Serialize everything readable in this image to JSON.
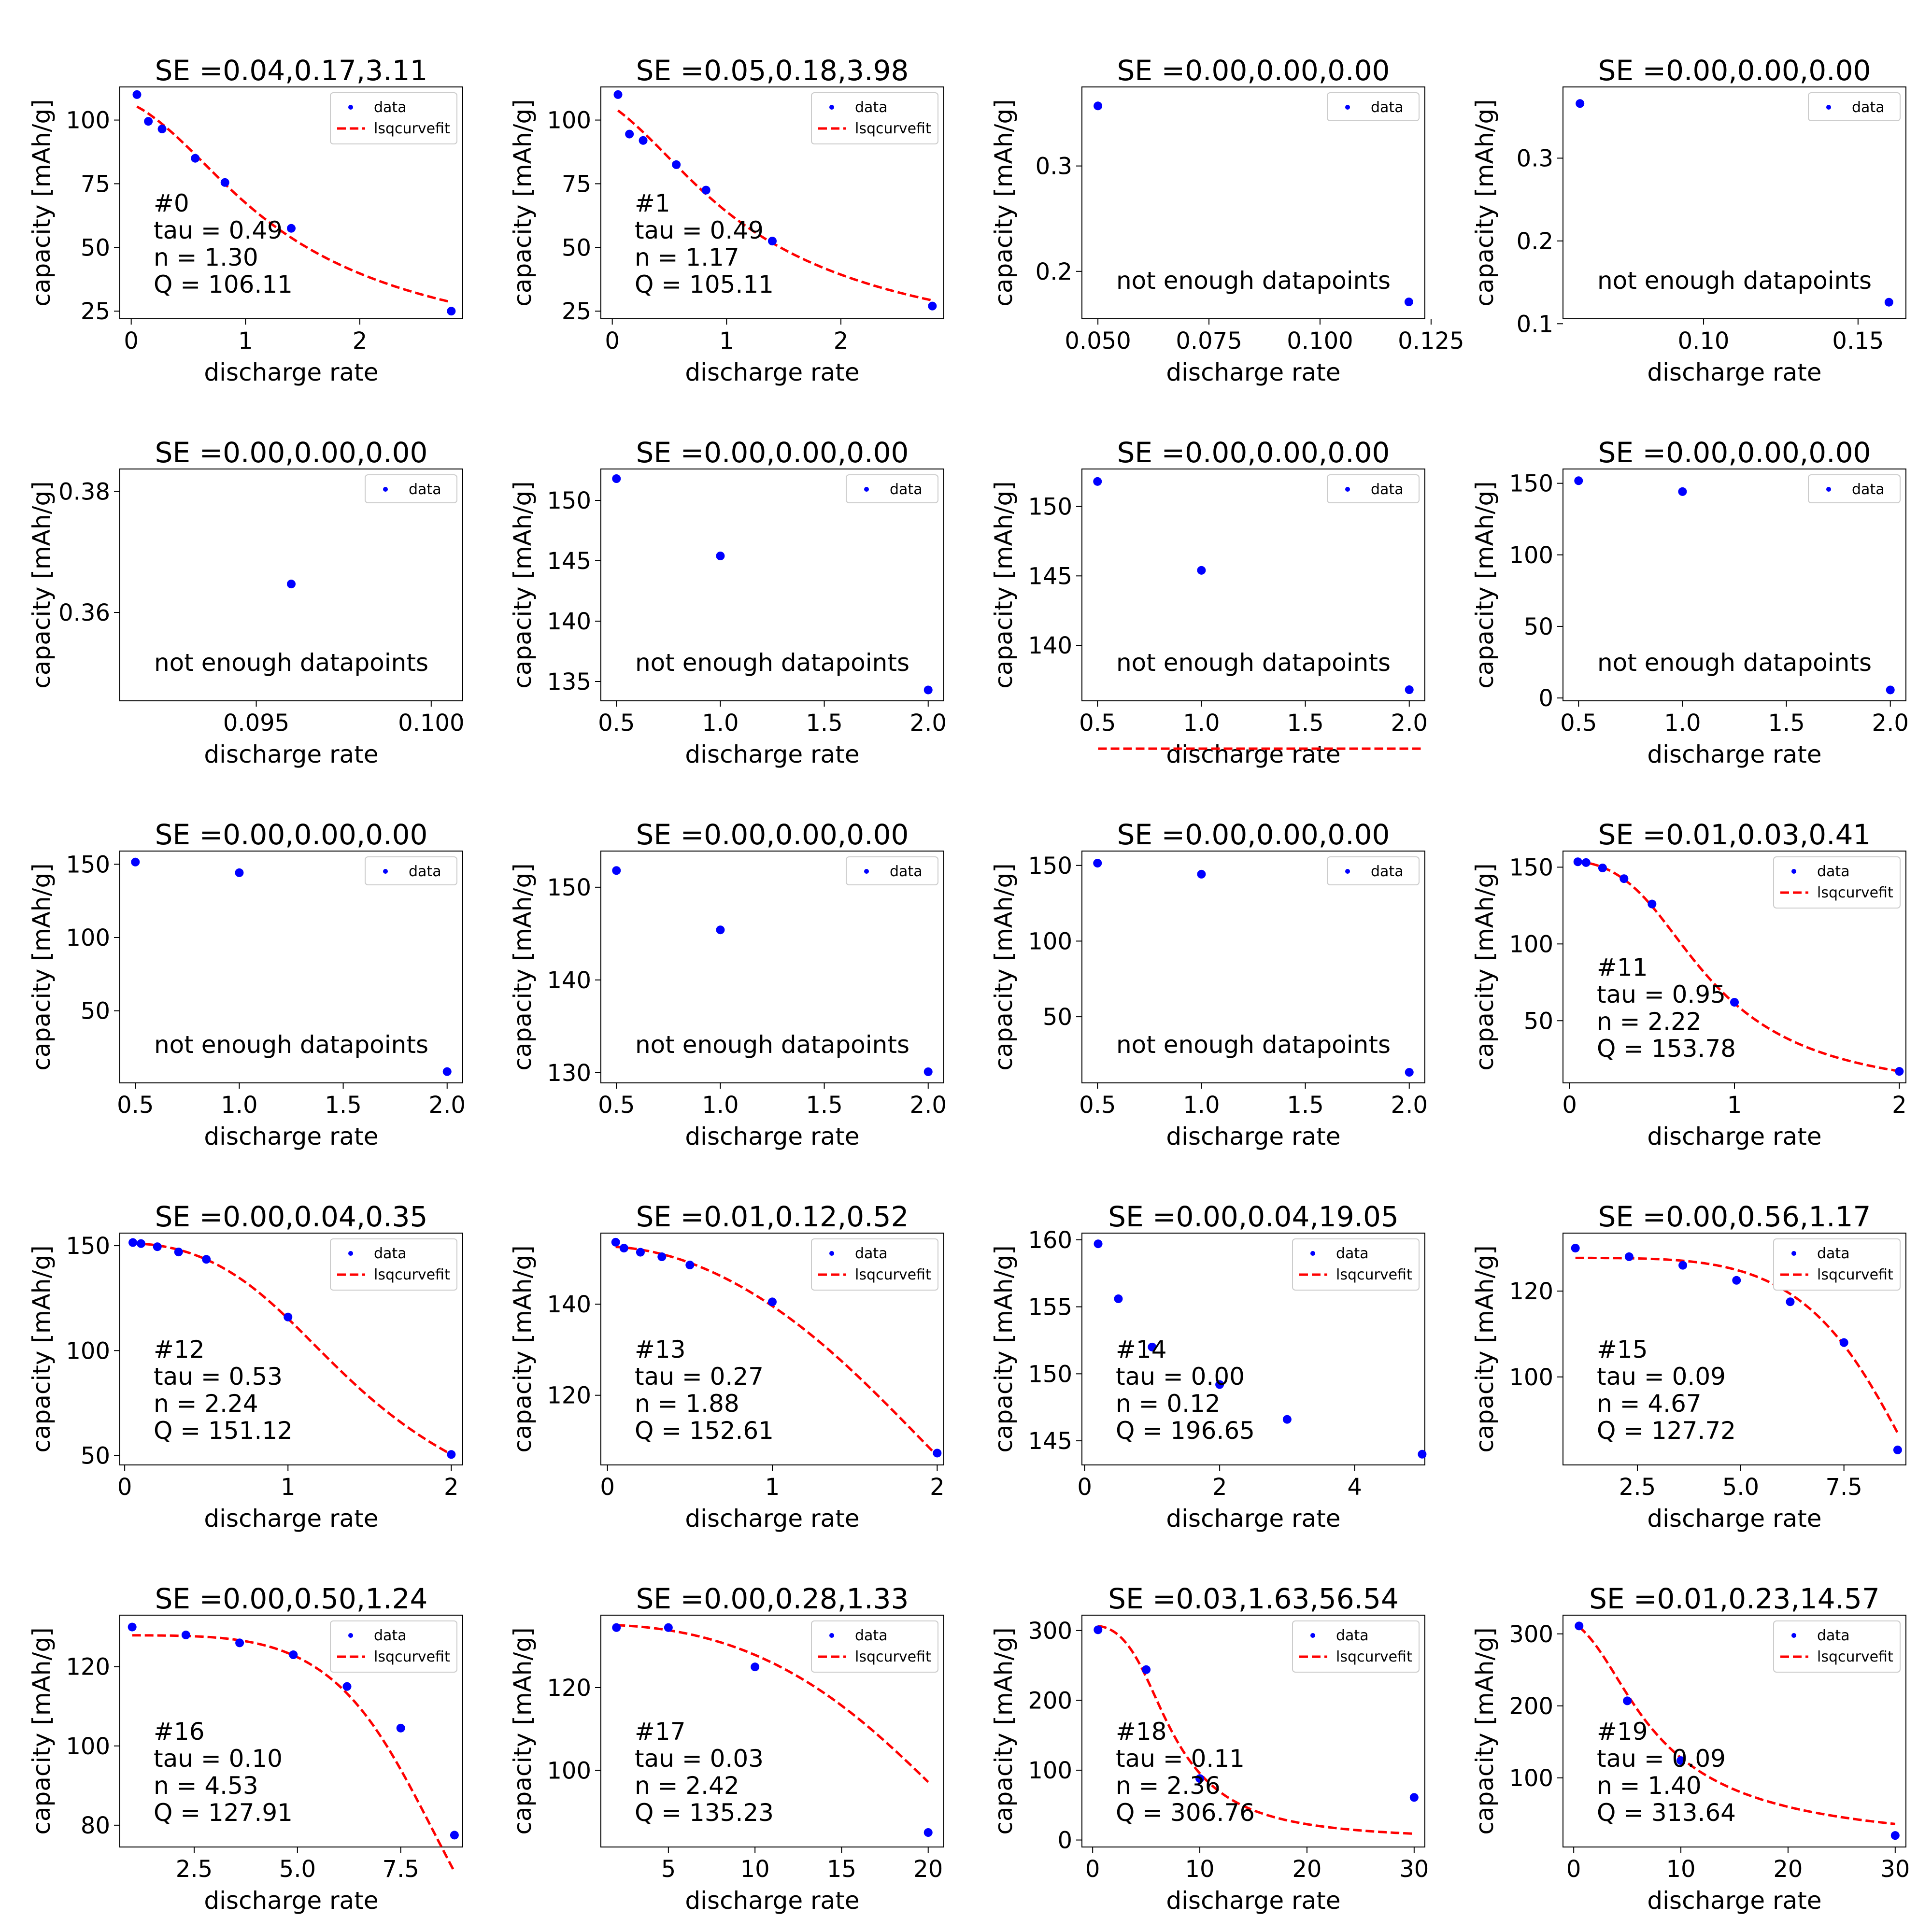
{
  "common": {
    "xlabel": "discharge rate",
    "ylabel": "capacity [mAh/g]",
    "legend_data": "data",
    "legend_fit": "lsqcurvefit",
    "not_enough": "not enough datapoints",
    "data_color": "#0000ff",
    "fit_color": "#ff0000",
    "legend_position": "upper right",
    "grid": false
  },
  "chart_data": [
    {
      "type": "scatter",
      "title": "SE =0.04,0.17,3.11",
      "xlim": [
        -0.1,
        2.9
      ],
      "ylim": [
        22,
        113
      ],
      "xticks": [
        0,
        1,
        2
      ],
      "yticks": [
        25,
        50,
        75,
        100
      ],
      "x": [
        0.05,
        0.15,
        0.27,
        0.56,
        0.82,
        1.4,
        2.8
      ],
      "y": [
        110,
        99.5,
        96.5,
        85,
        75.5,
        57.5,
        25
      ],
      "fit": {
        "tau": 0.49,
        "n": 1.3,
        "Q": 106.11
      },
      "annotation": [
        "#0",
        "tau = 0.49",
        "n = 1.30",
        "Q = 106.11"
      ]
    },
    {
      "type": "scatter",
      "title": "SE =0.05,0.18,3.98",
      "xlim": [
        -0.1,
        2.9
      ],
      "ylim": [
        22,
        113
      ],
      "xticks": [
        0,
        1,
        2
      ],
      "yticks": [
        25,
        50,
        75,
        100
      ],
      "x": [
        0.05,
        0.15,
        0.27,
        0.56,
        0.82,
        1.4,
        2.8
      ],
      "y": [
        110,
        94.5,
        92,
        82.5,
        72.5,
        52.5,
        27
      ],
      "fit": {
        "tau": 0.49,
        "n": 1.17,
        "Q": 105.11
      },
      "annotation": [
        "#1",
        "tau = 0.49",
        "n = 1.17",
        "Q = 105.11"
      ]
    },
    {
      "type": "scatter",
      "title": "SE =0.00,0.00,0.00",
      "xlim": [
        0.0464,
        0.1236
      ],
      "ylim": [
        0.155,
        0.375
      ],
      "xticks": [
        0.05,
        0.075,
        0.1,
        0.125
      ],
      "xtick_labels": [
        "0.050",
        "0.075",
        "0.100",
        "0.125"
      ],
      "yticks": [
        0.2,
        0.3
      ],
      "yticks_labels": [
        "0.2",
        "0.3"
      ],
      "x": [
        0.05,
        0.12
      ],
      "y": [
        0.357,
        0.171
      ],
      "note": true
    },
    {
      "type": "scatter",
      "title": "SE =0.00,0.00,0.00",
      "xlim": [
        0.0545,
        0.1655
      ],
      "ylim": [
        0.106,
        0.386
      ],
      "xticks": [
        0.1,
        0.15
      ],
      "xtick_labels": [
        "0.10",
        "0.15"
      ],
      "yticks": [
        0.1,
        0.2,
        0.3
      ],
      "yticks_labels": [
        "0.1",
        "0.2",
        "0.3"
      ],
      "x": [
        0.06,
        0.16
      ],
      "y": [
        0.366,
        0.126
      ],
      "note": true
    },
    {
      "type": "scatter",
      "title": "SE =0.00,0.00,0.00",
      "xlim": [
        0.0911,
        0.1009
      ],
      "ylim": [
        0.3454,
        0.3837
      ],
      "xticks": [
        0.095,
        0.1
      ],
      "xtick_labels": [
        "0.095",
        "0.100"
      ],
      "yticks": [
        0.36,
        0.38
      ],
      "yticks_labels": [
        "0.36",
        "0.38"
      ],
      "x": [
        0.096
      ],
      "y": [
        0.3647
      ],
      "note": true
    },
    {
      "type": "scatter",
      "title": "SE =0.00,0.00,0.00",
      "xlim": [
        0.425,
        2.075
      ],
      "ylim": [
        133.4,
        152.6
      ],
      "xticks": [
        0.5,
        1,
        1.5,
        2
      ],
      "xtick_labels": [
        "0.5",
        "1.0",
        "1.5",
        "2.0"
      ],
      "yticks": [
        135,
        140,
        145,
        150
      ],
      "x": [
        0.5,
        1,
        2
      ],
      "y": [
        151.8,
        145.4,
        134.3
      ],
      "note": true
    },
    {
      "type": "scatter",
      "title": "SE =0.00,0.00,0.00",
      "xlim": [
        0.425,
        2.075
      ],
      "ylim": [
        136,
        152.7
      ],
      "xticks": [
        0.5,
        1,
        1.5,
        2
      ],
      "xtick_labels": [
        "0.5",
        "1.0",
        "1.5",
        "2.0"
      ],
      "yticks": [
        140,
        145,
        150
      ],
      "x": [
        0.5,
        1,
        2
      ],
      "y": [
        151.8,
        145.4,
        136.8
      ],
      "note": true
    },
    {
      "type": "scatter",
      "title": "SE =0.00,0.00,0.00",
      "xlim": [
        0.425,
        2.075
      ],
      "ylim": [
        -2,
        160
      ],
      "xticks": [
        0.5,
        1,
        1.5,
        2
      ],
      "xtick_labels": [
        "0.5",
        "1.0",
        "1.5",
        "2.0"
      ],
      "yticks": [
        0,
        50,
        100,
        150
      ],
      "x": [
        0.5,
        1,
        2
      ],
      "y": [
        151.8,
        144.2,
        5.6
      ],
      "note": true
    },
    {
      "type": "scatter",
      "title": "SE =0.00,0.00,0.00",
      "xlim": [
        0.425,
        2.075
      ],
      "ylim": [
        0.8,
        159
      ],
      "xticks": [
        0.5,
        1,
        1.5,
        2
      ],
      "xtick_labels": [
        "0.5",
        "1.0",
        "1.5",
        "2.0"
      ],
      "yticks": [
        50,
        100,
        150
      ],
      "x": [
        0.5,
        1,
        2
      ],
      "y": [
        151.5,
        144.2,
        8.5
      ],
      "note": true
    },
    {
      "type": "scatter",
      "title": "SE =0.00,0.00,0.00",
      "xlim": [
        0.425,
        2.075
      ],
      "ylim": [
        128.9,
        153.9
      ],
      "xticks": [
        0.5,
        1,
        1.5,
        2
      ],
      "xtick_labels": [
        "0.5",
        "1.0",
        "1.5",
        "2.0"
      ],
      "yticks": [
        130,
        140,
        150
      ],
      "x": [
        0.5,
        1,
        2
      ],
      "y": [
        151.8,
        145.4,
        130.1
      ],
      "note": true
    },
    {
      "type": "scatter",
      "title": "SE =0.00,0.00,0.00",
      "xlim": [
        0.425,
        2.075
      ],
      "ylim": [
        6.3,
        159.5
      ],
      "xticks": [
        0.5,
        1,
        1.5,
        2
      ],
      "xtick_labels": [
        "0.5",
        "1.0",
        "1.5",
        "2.0"
      ],
      "yticks": [
        50,
        100,
        150
      ],
      "x": [
        0.5,
        1,
        2
      ],
      "y": [
        151.5,
        144.2,
        13.3
      ],
      "note": true
    },
    {
      "type": "scatter",
      "title": "SE =0.01,0.03,0.41",
      "xlim": [
        -0.04,
        2.04
      ],
      "ylim": [
        9.5,
        160.5
      ],
      "xticks": [
        0,
        1,
        2
      ],
      "yticks": [
        50,
        100,
        150
      ],
      "x": [
        0.05,
        0.1,
        0.2,
        0.33,
        0.5,
        1,
        2
      ],
      "y": [
        153.5,
        153,
        149.5,
        142.5,
        126,
        62,
        17
      ],
      "fit": {
        "tau": 0.95,
        "n": 2.22,
        "Q": 153.78
      },
      "annotation": [
        "#11",
        "tau = 0.95",
        "n = 2.22",
        "Q = 153.78"
      ]
    },
    {
      "type": "scatter",
      "title": "SE =0.00,0.04,0.35",
      "xlim": [
        -0.03,
        2.07
      ],
      "ylim": [
        45.5,
        156
      ],
      "xticks": [
        0,
        1,
        2
      ],
      "yticks": [
        50,
        100,
        150
      ],
      "x": [
        0.05,
        0.1,
        0.2,
        0.33,
        0.5,
        1,
        2
      ],
      "y": [
        151.5,
        151,
        149.5,
        147,
        143.5,
        116,
        50.5
      ],
      "fit": {
        "tau": 0.53,
        "n": 2.24,
        "Q": 151.12
      },
      "annotation": [
        "#12",
        "tau = 0.53",
        "n = 2.24",
        "Q = 151.12"
      ]
    },
    {
      "type": "scatter",
      "title": "SE =0.01,0.12,0.52",
      "xlim": [
        -0.04,
        2.04
      ],
      "ylim": [
        104.7,
        155.6
      ],
      "xticks": [
        0,
        1,
        2
      ],
      "yticks": [
        120,
        140
      ],
      "x": [
        0.05,
        0.1,
        0.2,
        0.33,
        0.5,
        1,
        2
      ],
      "y": [
        153.6,
        152.3,
        151.4,
        150.4,
        148.6,
        140.5,
        107.3
      ],
      "fit": {
        "tau": 0.27,
        "n": 1.88,
        "Q": 152.61
      },
      "annotation": [
        "#13",
        "tau = 0.27",
        "n = 1.88",
        "Q = 152.61"
      ]
    },
    {
      "type": "scatter",
      "title": "SE =0.00,0.04,19.05",
      "xlim": [
        -0.04,
        5.04
      ],
      "ylim": [
        143.2,
        160.5
      ],
      "xticks": [
        0,
        2,
        4
      ],
      "yticks": [
        145,
        150,
        155,
        160
      ],
      "x": [
        0.2,
        0.5,
        1,
        2,
        3,
        5
      ],
      "y": [
        159.7,
        155.6,
        152,
        149.2,
        146.6,
        144
      ],
      "fit": {
        "tau": 0.0,
        "n": 0.12,
        "Q": 196.65
      },
      "annotation": [
        "#14",
        "tau = 0.00",
        "n = 0.12",
        "Q = 196.65"
      ]
    },
    {
      "type": "scatter",
      "title": "SE =0.00,0.56,1.17",
      "xlim": [
        0.7,
        9.0
      ],
      "ylim": [
        79.5,
        133.5
      ],
      "xticks": [
        2.5,
        5,
        7.5
      ],
      "xtick_labels": [
        "2.5",
        "5.0",
        "7.5"
      ],
      "yticks": [
        100,
        120
      ],
      "x": [
        1,
        2.3,
        3.6,
        4.9,
        6.2,
        7.5,
        8.8
      ],
      "y": [
        130,
        128,
        126,
        122.5,
        117.5,
        108,
        83
      ],
      "fit": {
        "tau": 0.09,
        "n": 4.67,
        "Q": 127.72
      },
      "annotation": [
        "#15",
        "tau = 0.09",
        "n = 4.67",
        "Q = 127.72"
      ]
    },
    {
      "type": "scatter",
      "title": "SE =0.00,0.50,1.24",
      "xlim": [
        0.7,
        9.0
      ],
      "ylim": [
        74.5,
        133
      ],
      "xticks": [
        2.5,
        5,
        7.5
      ],
      "xtick_labels": [
        "2.5",
        "5.0",
        "7.5"
      ],
      "yticks": [
        80,
        100,
        120
      ],
      "x": [
        1,
        2.3,
        3.6,
        4.9,
        6.2,
        7.5,
        8.8
      ],
      "y": [
        130,
        128,
        126,
        123,
        115,
        104.5,
        77.5
      ],
      "fit": {
        "tau": 0.1,
        "n": 4.53,
        "Q": 127.91
      },
      "annotation": [
        "#16",
        "tau = 0.10",
        "n = 4.53",
        "Q = 127.91"
      ]
    },
    {
      "type": "scatter",
      "title": "SE =0.00,0.28,1.33",
      "xlim": [
        1.1,
        20.9
      ],
      "ylim": [
        81.5,
        137.5
      ],
      "xticks": [
        5,
        10,
        15,
        20
      ],
      "yticks": [
        100,
        120
      ],
      "x": [
        2,
        5,
        10,
        20
      ],
      "y": [
        134.5,
        134.5,
        125,
        85
      ],
      "fit": {
        "tau": 0.03,
        "n": 2.42,
        "Q": 135.23
      },
      "annotation": [
        "#17",
        "tau = 0.03",
        "n = 2.42",
        "Q = 135.23"
      ]
    },
    {
      "type": "scatter",
      "title": "SE =0.03,1.63,56.54",
      "xlim": [
        -1,
        31
      ],
      "ylim": [
        -10,
        322
      ],
      "xticks": [
        0,
        10,
        20,
        30
      ],
      "yticks": [
        0,
        100,
        200,
        300
      ],
      "x": [
        0.5,
        5,
        10,
        30
      ],
      "y": [
        301,
        244,
        88,
        61
      ],
      "fit": {
        "tau": 0.11,
        "n": 2.36,
        "Q": 306.76
      },
      "annotation": [
        "#18",
        "tau = 0.11",
        "n = 2.36",
        "Q = 306.76"
      ]
    },
    {
      "type": "scatter",
      "title": "SE =0.01,0.23,14.57",
      "xlim": [
        -1,
        31
      ],
      "ylim": [
        4,
        326
      ],
      "xticks": [
        0,
        10,
        20,
        30
      ],
      "yticks": [
        100,
        200,
        300
      ],
      "x": [
        0.5,
        5,
        10,
        30
      ],
      "y": [
        311,
        207,
        124,
        20
      ],
      "fit": {
        "tau": 0.09,
        "n": 1.4,
        "Q": 313.64
      },
      "annotation": [
        "#19",
        "tau = 0.09",
        "n = 1.40",
        "Q = 313.64"
      ]
    }
  ]
}
